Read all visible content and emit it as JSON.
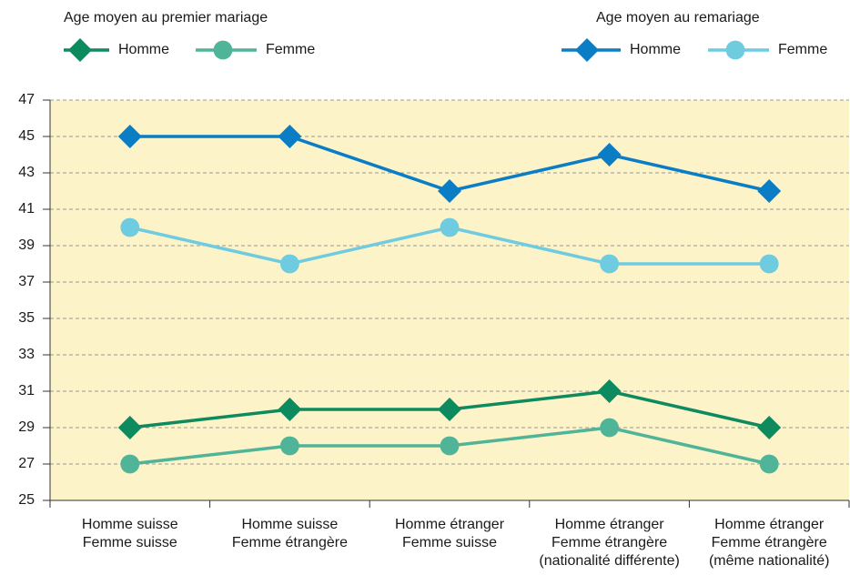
{
  "chart_data": {
    "type": "line",
    "legend_titles": [
      "Age moyen au premier mariage",
      "Age moyen au remariage"
    ],
    "categories": [
      [
        "Homme suisse",
        "Femme suisse"
      ],
      [
        "Homme suisse",
        "Femme étrangère"
      ],
      [
        "Homme étranger",
        "Femme suisse"
      ],
      [
        "Homme étranger",
        "Femme étrangère",
        "(nationalité différente)"
      ],
      [
        "Homme étranger",
        "Femme étrangère",
        "(même nationalité)"
      ]
    ],
    "series": [
      {
        "name": "Homme",
        "color": "#0e8a5f",
        "marker": "diamond",
        "values": [
          29,
          30,
          30,
          31,
          29
        ]
      },
      {
        "name": "Femme",
        "color": "#4fb498",
        "marker": "circle",
        "values": [
          27,
          28,
          28,
          29,
          27
        ]
      },
      {
        "name": "Homme",
        "color": "#0b7dc5",
        "marker": "diamond",
        "values": [
          45,
          45,
          42,
          44,
          42
        ]
      },
      {
        "name": "Femme",
        "color": "#6ecbe0",
        "marker": "circle",
        "values": [
          40,
          38,
          40,
          38,
          38
        ]
      }
    ],
    "ylim": [
      25,
      47
    ],
    "yticks": [
      25,
      27,
      29,
      31,
      33,
      35,
      37,
      39,
      41,
      43,
      45,
      47
    ],
    "grid": true,
    "plot_background": "#fcf3c8"
  }
}
